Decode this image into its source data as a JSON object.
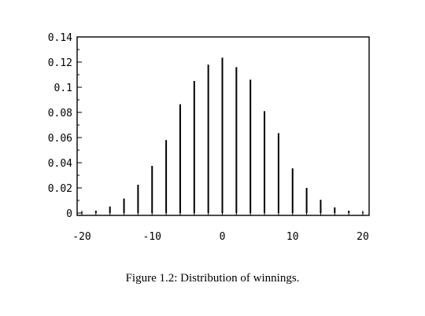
{
  "caption": "Figure 1.2: Distribution of winnings.",
  "chart_data": {
    "type": "stem",
    "title": "",
    "xlabel": "",
    "ylabel": "",
    "xlim": [
      -20,
      20
    ],
    "ylim": [
      0,
      0.14
    ],
    "grid": false,
    "x_ticks": [
      -20,
      -10,
      0,
      10,
      20
    ],
    "x_tick_labels": [
      "-20",
      "-10",
      "0",
      "10",
      "20"
    ],
    "y_ticks": [
      0,
      0.02,
      0.04,
      0.06,
      0.08,
      0.1,
      0.12,
      0.14
    ],
    "y_tick_labels": [
      "0",
      "0.02",
      "0.04",
      "0.06",
      "0.08",
      "0.1",
      "0.12",
      "0.14"
    ],
    "x": [
      -20,
      -18,
      -16,
      -14,
      -12,
      -10,
      -8,
      -6,
      -4,
      -2,
      0,
      2,
      4,
      6,
      8,
      10,
      12,
      14,
      16,
      18,
      20
    ],
    "values": [
      0.0001,
      0.0018,
      0.0052,
      0.0115,
      0.0225,
      0.0375,
      0.058,
      0.0865,
      0.105,
      0.118,
      0.1235,
      0.116,
      0.106,
      0.081,
      0.0635,
      0.0355,
      0.02,
      0.0105,
      0.0045,
      0.0018,
      0.0001
    ]
  }
}
